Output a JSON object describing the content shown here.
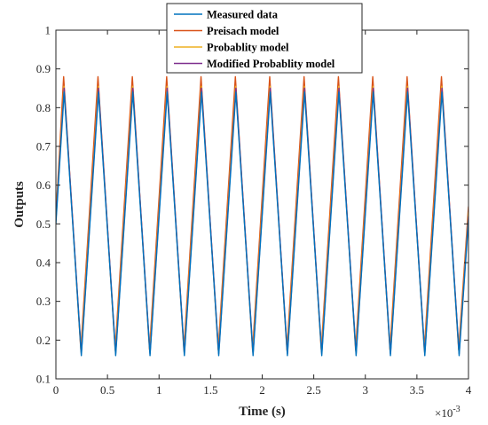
{
  "chart_data": {
    "type": "line",
    "xlabel": "Time (s)",
    "ylabel": "Outputs",
    "x_multiplier": "×10",
    "x_multiplier_exp": "-3",
    "xlim": [
      0,
      4
    ],
    "ylim": [
      0.1,
      1
    ],
    "x_ticks": [
      0,
      0.5,
      1,
      1.5,
      2,
      2.5,
      3,
      3.5,
      4
    ],
    "x_tick_labels": [
      "0",
      "0.5",
      "1",
      "1.5",
      "2",
      "2.5",
      "3",
      "3.5",
      "4"
    ],
    "y_ticks": [
      0.1,
      0.2,
      0.3,
      0.4,
      0.5,
      0.6,
      0.7,
      0.8,
      0.9,
      1
    ],
    "y_tick_labels": [
      "0.1",
      "0.2",
      "0.3",
      "0.4",
      "0.5",
      "0.6",
      "0.7",
      "0.8",
      "0.9",
      "1"
    ],
    "grid": false,
    "legend_position": "top",
    "period": 0.333,
    "series": [
      {
        "name": "Measured data",
        "color": "#0072BD",
        "start": 0.5,
        "peak_x": 0.08,
        "peak": 0.84,
        "trough": 0.16,
        "end": 0.51
      },
      {
        "name": "Preisach model",
        "color": "#D95319",
        "start": 0.52,
        "peak_x": 0.075,
        "peak": 0.88,
        "trough": 0.175,
        "end": 0.545
      },
      {
        "name": "Probablity model",
        "color": "#EDB120",
        "start": 0.52,
        "peak_x": 0.078,
        "peak": 0.855,
        "trough": 0.17,
        "end": 0.53
      },
      {
        "name": "Modified Probablity model",
        "color": "#7E2F8E",
        "start": 0.51,
        "peak_x": 0.08,
        "peak": 0.85,
        "trough": 0.165,
        "end": 0.52
      }
    ]
  }
}
